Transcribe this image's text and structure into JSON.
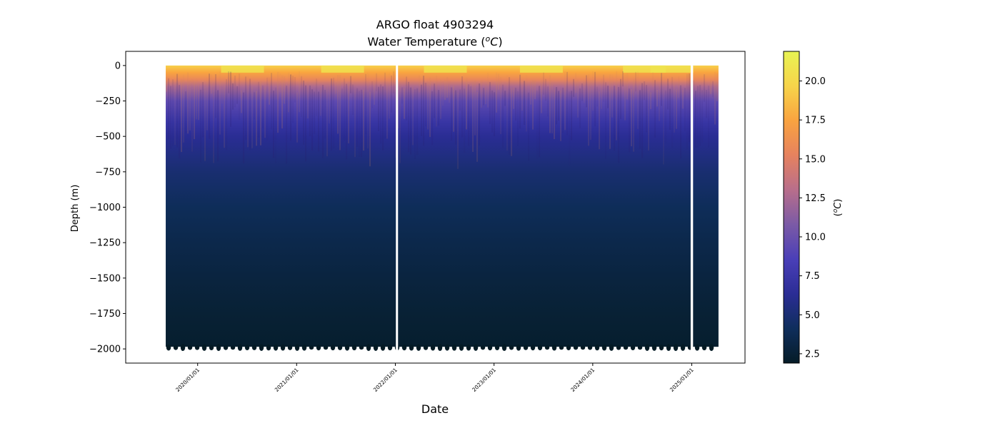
{
  "chart_data": {
    "type": "heatmap",
    "title_line1": "ARGO float 4903294",
    "title_line2_text": "Water Temperature (",
    "title_line2_unit_base": "C",
    "title_line2_unit_sup": "o",
    "title_line2_close": ")",
    "xlabel": "Date",
    "ylabel": "Depth (m)",
    "colorbar_label_open": "(",
    "colorbar_label_sup": "o",
    "colorbar_label_base": "C",
    "colorbar_label_close": ")",
    "x_start": "2019-09-05",
    "x_end": "2025-04-10",
    "x_gaps": [
      [
        "2022-01-03",
        "2022-01-11"
      ],
      [
        "2024-12-28",
        "2025-01-06"
      ]
    ],
    "xlim": [
      "2019-04-10",
      "2025-07-17"
    ],
    "ylim": [
      -2100,
      100
    ],
    "x_ticks": [
      {
        "date": "2020-01-01",
        "label": "2020/01/01"
      },
      {
        "date": "2021-01-01",
        "label": "2021/01/01"
      },
      {
        "date": "2022-01-01",
        "label": "2022/01/01"
      },
      {
        "date": "2023-01-01",
        "label": "2023/01/01"
      },
      {
        "date": "2024-01-01",
        "label": "2024/01/01"
      },
      {
        "date": "2025-01-01",
        "label": "2025/01/01"
      }
    ],
    "y_ticks": [
      {
        "value": 0,
        "label": "0"
      },
      {
        "value": -250,
        "label": "−250"
      },
      {
        "value": -500,
        "label": "−500"
      },
      {
        "value": -750,
        "label": "−750"
      },
      {
        "value": -1000,
        "label": "−1000"
      },
      {
        "value": -1250,
        "label": "−1250"
      },
      {
        "value": -1500,
        "label": "−1500"
      },
      {
        "value": -1750,
        "label": "−1750"
      },
      {
        "value": -2000,
        "label": "−2000"
      }
    ],
    "colorbar": {
      "range": [
        1.9,
        21.9
      ],
      "ticks": [
        {
          "value": 2.5,
          "label": "2.5"
        },
        {
          "value": 5.0,
          "label": "5.0"
        },
        {
          "value": 7.5,
          "label": "7.5"
        },
        {
          "value": 10.0,
          "label": "10.0"
        },
        {
          "value": 12.5,
          "label": "12.5"
        },
        {
          "value": 15.0,
          "label": "15.0"
        },
        {
          "value": 17.5,
          "label": "17.5"
        },
        {
          "value": 20.0,
          "label": "20.0"
        }
      ],
      "colormap": "thermal",
      "stops": [
        "#051c27",
        "#0f2e5c",
        "#2b2d95",
        "#4a3fb8",
        "#7b5aa6",
        "#b86e8b",
        "#e6825f",
        "#f9a340",
        "#f7d44a",
        "#e8f353"
      ]
    },
    "temperature_profile": [
      {
        "depth": 0,
        "temp": 19.5
      },
      {
        "depth": -50,
        "temp": 17.5
      },
      {
        "depth": -100,
        "temp": 15.5
      },
      {
        "depth": -150,
        "temp": 12.5
      },
      {
        "depth": -250,
        "temp": 9.5
      },
      {
        "depth": -400,
        "temp": 7.3
      },
      {
        "depth": -500,
        "temp": 6.3
      },
      {
        "depth": -750,
        "temp": 4.9
      },
      {
        "depth": -1000,
        "temp": 4.0
      },
      {
        "depth": -1250,
        "temp": 3.4
      },
      {
        "depth": -1500,
        "temp": 2.9
      },
      {
        "depth": -1750,
        "temp": 2.5
      },
      {
        "depth": -2000,
        "temp": 2.2
      }
    ],
    "profile_bottom_depth": -1985
  }
}
